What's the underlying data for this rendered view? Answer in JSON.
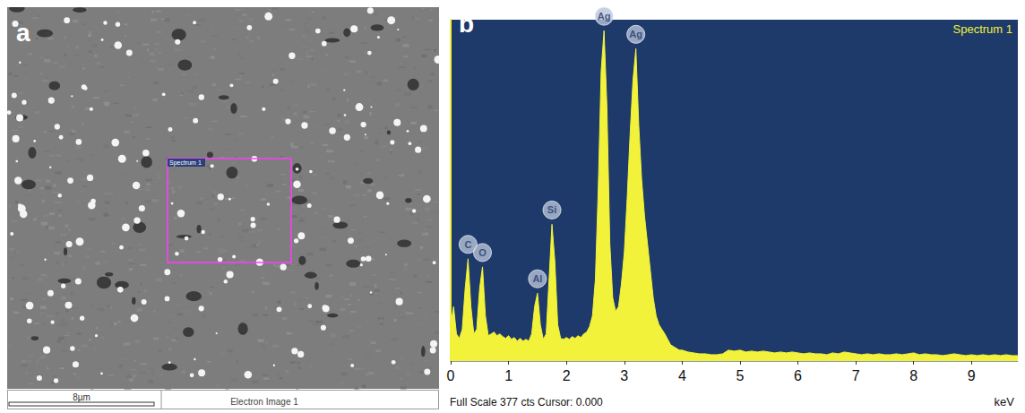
{
  "image": {
    "panel_label": "a",
    "region_label": "Spectrum 1",
    "scale_bar": "8µm",
    "caption": "Electron Image 1"
  },
  "chart_data": {
    "type": "area",
    "panel_label": "b",
    "title": "Spectrum 1",
    "xlabel": "keV",
    "footer": "Full Scale 377 cts Cursor: 0.000",
    "x": [
      0,
      0.05,
      0.1,
      0.15,
      0.2,
      0.25,
      0.3,
      0.35,
      0.4,
      0.45,
      0.5,
      0.55,
      0.6,
      0.65,
      0.7,
      0.75,
      0.8,
      0.85,
      0.9,
      0.95,
      1,
      1.05,
      1.1,
      1.15,
      1.2,
      1.25,
      1.3,
      1.35,
      1.4,
      1.45,
      1.5,
      1.55,
      1.6,
      1.65,
      1.7,
      1.75,
      1.8,
      1.85,
      1.9,
      1.95,
      2,
      2.05,
      2.1,
      2.15,
      2.2,
      2.25,
      2.3,
      2.35,
      2.4,
      2.45,
      2.5,
      2.55,
      2.6,
      2.65,
      2.7,
      2.75,
      2.8,
      2.85,
      2.9,
      2.95,
      3,
      3.05,
      3.1,
      3.15,
      3.2,
      3.25,
      3.3,
      3.35,
      3.4,
      3.45,
      3.5,
      3.55,
      3.6,
      3.65,
      3.7,
      3.75,
      3.8,
      3.85,
      3.9,
      3.95,
      4,
      4.1,
      4.2,
      4.3,
      4.4,
      4.5,
      4.6,
      4.7,
      4.8,
      4.9,
      5,
      5.1,
      5.2,
      5.3,
      5.4,
      5.5,
      5.6,
      5.7,
      5.8,
      5.9,
      6,
      6.1,
      6.2,
      6.3,
      6.4,
      6.5,
      6.6,
      6.7,
      6.8,
      6.9,
      7,
      7.1,
      7.2,
      7.3,
      7.4,
      7.5,
      7.6,
      7.7,
      7.8,
      7.9,
      8,
      8.1,
      8.2,
      8.3,
      8.4,
      8.5,
      8.6,
      8.7,
      8.8,
      8.9,
      9,
      9.1,
      9.2,
      9.3,
      9.4,
      9.5,
      9.6,
      9.7,
      9.8
    ],
    "values": [
      40,
      60,
      30,
      25,
      35,
      80,
      113,
      60,
      30,
      35,
      80,
      104,
      50,
      28,
      30,
      32,
      28,
      30,
      27,
      25,
      28,
      24,
      26,
      22,
      25,
      22,
      24,
      22,
      30,
      60,
      75,
      40,
      24,
      30,
      90,
      151,
      110,
      40,
      25,
      24,
      26,
      24,
      27,
      25,
      28,
      26,
      30,
      32,
      38,
      50,
      90,
      190,
      320,
      365,
      280,
      130,
      70,
      55,
      60,
      85,
      120,
      180,
      250,
      310,
      345,
      260,
      200,
      160,
      130,
      100,
      70,
      50,
      40,
      35,
      30,
      24,
      18,
      16,
      14,
      12,
      12,
      10,
      9,
      8,
      8,
      7,
      7,
      8,
      12,
      11,
      12,
      10,
      11,
      10,
      11,
      10,
      9,
      10,
      9,
      10,
      9,
      8,
      9,
      8,
      8,
      7,
      9,
      8,
      10,
      9,
      8,
      7,
      8,
      7,
      8,
      7,
      7,
      8,
      7,
      8,
      9,
      7,
      8,
      7,
      7,
      6,
      7,
      8,
      7,
      6,
      7,
      6,
      7,
      6,
      7,
      6,
      7,
      6,
      6
    ],
    "color": "#f2f23a",
    "annotations": [
      {
        "text": "C",
        "x": 0.3,
        "y": 113
      },
      {
        "text": "O",
        "x": 0.55,
        "y": 104
      },
      {
        "text": "Al",
        "x": 1.5,
        "y": 75
      },
      {
        "text": "Si",
        "x": 1.75,
        "y": 151
      },
      {
        "text": "Ag",
        "x": 2.65,
        "y": 365
      },
      {
        "text": "Ag",
        "x": 3.2,
        "y": 345
      }
    ],
    "xlim": [
      0,
      9.8
    ],
    "xticks": [
      0,
      1,
      2,
      3,
      4,
      5,
      6,
      7,
      8,
      9
    ],
    "ylim": [
      0,
      377
    ],
    "tick_labels": "x",
    "grid": false
  }
}
